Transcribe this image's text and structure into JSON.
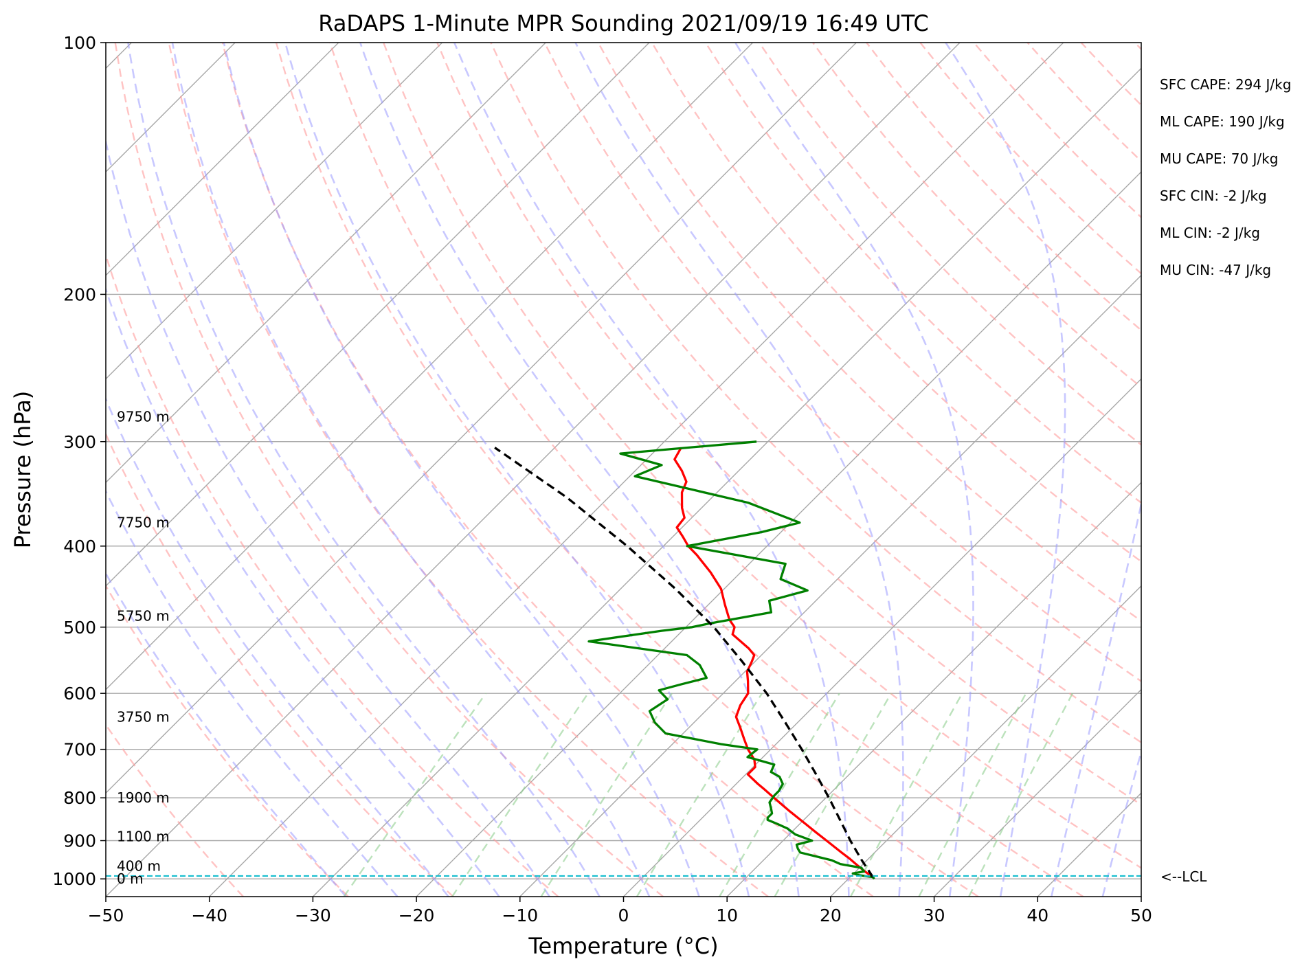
{
  "chart_data": {
    "type": "line",
    "title": "RaDAPS 1-Minute MPR Sounding 2021/09/19 16:49 UTC",
    "xlabel": "Temperature (°C)",
    "ylabel": "Pressure (hPa)",
    "xlim": [
      -50,
      50
    ],
    "ylim": [
      1050,
      100
    ],
    "yscale": "log",
    "skew_degrees": 45,
    "grid": true,
    "x_ticks": [
      -50,
      -40,
      -30,
      -20,
      -10,
      0,
      10,
      20,
      30,
      40,
      50
    ],
    "x_tick_labels": [
      "−50",
      "−40",
      "−30",
      "−20",
      "−10",
      "0",
      "10",
      "20",
      "30",
      "40",
      "50"
    ],
    "y_ticks": [
      100,
      200,
      300,
      400,
      500,
      600,
      700,
      800,
      900,
      1000
    ],
    "y_tick_labels": [
      "100",
      "200",
      "300",
      "400",
      "500",
      "600",
      "700",
      "800",
      "900",
      "1000"
    ],
    "height_labels": [
      {
        "p": 1000,
        "text": "0 m"
      },
      {
        "p": 965,
        "text": "400 m"
      },
      {
        "p": 890,
        "text": "1100 m"
      },
      {
        "p": 800,
        "text": "1900 m"
      },
      {
        "p": 640,
        "text": "3750 m"
      },
      {
        "p": 485,
        "text": "5750 m"
      },
      {
        "p": 375,
        "text": "7750 m"
      },
      {
        "p": 280,
        "text": "9750 m"
      }
    ],
    "stats": [
      "SFC CAPE: 294 J/kg",
      "ML CAPE: 190 J/kg",
      "MU CAPE: 70 J/kg",
      "SFC CIN: -2 J/kg",
      "ML CIN: -2 J/kg",
      "MU CIN: -47 J/kg"
    ],
    "lcl": {
      "p": 992,
      "label": "<--LCL"
    },
    "series": [
      {
        "color": "#ff0000",
        "points": [
          [
            1000,
            22.5
          ],
          [
            995,
            22.2
          ],
          [
            980,
            20.9
          ],
          [
            960,
            19.3
          ],
          [
            945,
            18.1
          ],
          [
            930,
            16.8
          ],
          [
            900,
            14.2
          ],
          [
            880,
            12.4
          ],
          [
            860,
            10.6
          ],
          [
            830,
            7.8
          ],
          [
            800,
            5.0
          ],
          [
            780,
            3.1
          ],
          [
            770,
            2.1
          ],
          [
            750,
            0.2
          ],
          [
            735,
            0.2
          ],
          [
            720,
            -0.6
          ],
          [
            700,
            -2.2
          ],
          [
            680,
            -3.6
          ],
          [
            660,
            -5.0
          ],
          [
            640,
            -6.5
          ],
          [
            620,
            -7.2
          ],
          [
            600,
            -7.6
          ],
          [
            580,
            -8.8
          ],
          [
            565,
            -9.8
          ],
          [
            550,
            -10.3
          ],
          [
            540,
            -10.7
          ],
          [
            530,
            -11.9
          ],
          [
            510,
            -14.8
          ],
          [
            500,
            -15.3
          ],
          [
            490,
            -16.5
          ],
          [
            470,
            -18.4
          ],
          [
            450,
            -20.3
          ],
          [
            430,
            -22.9
          ],
          [
            410,
            -25.9
          ],
          [
            400,
            -27.6
          ],
          [
            390,
            -29.0
          ],
          [
            380,
            -30.5
          ],
          [
            370,
            -30.7
          ],
          [
            360,
            -31.9
          ],
          [
            345,
            -33.4
          ],
          [
            335,
            -34.0
          ],
          [
            325,
            -35.5
          ],
          [
            315,
            -37.3
          ],
          [
            305,
            -37.8
          ]
        ]
      },
      {
        "color": "#008000",
        "points": [
          [
            1000,
            22.5
          ],
          [
            995,
            22.2
          ],
          [
            990,
            20.7
          ],
          [
            985,
            19.9
          ],
          [
            980,
            20.8
          ],
          [
            970,
            20.2
          ],
          [
            960,
            17.8
          ],
          [
            950,
            16.6
          ],
          [
            930,
            12.8
          ],
          [
            920,
            12.2
          ],
          [
            910,
            11.7
          ],
          [
            900,
            12.8
          ],
          [
            885,
            10.6
          ],
          [
            870,
            9.2
          ],
          [
            860,
            7.9
          ],
          [
            850,
            6.5
          ],
          [
            845,
            6.3
          ],
          [
            835,
            6.3
          ],
          [
            825,
            5.8
          ],
          [
            810,
            5.0
          ],
          [
            795,
            4.8
          ],
          [
            785,
            4.8
          ],
          [
            770,
            4.5
          ],
          [
            755,
            3.5
          ],
          [
            745,
            2.2
          ],
          [
            730,
            1.8
          ],
          [
            715,
            -1.5
          ],
          [
            700,
            -1.3
          ],
          [
            690,
            -5.3
          ],
          [
            670,
            -11.7
          ],
          [
            650,
            -13.8
          ],
          [
            630,
            -15.4
          ],
          [
            610,
            -14.8
          ],
          [
            595,
            -16.5
          ],
          [
            585,
            -14.9
          ],
          [
            575,
            -13.1
          ],
          [
            555,
            -15.0
          ],
          [
            540,
            -17.2
          ],
          [
            520,
            -28.0
          ],
          [
            505,
            -22.0
          ],
          [
            500,
            -19.4
          ],
          [
            495,
            -18.1
          ],
          [
            480,
            -13.2
          ],
          [
            465,
            -14.5
          ],
          [
            452,
            -11.8
          ],
          [
            438,
            -15.5
          ],
          [
            420,
            -16.5
          ],
          [
            400,
            -27.7
          ],
          [
            385,
            -21.9
          ],
          [
            375,
            -19.1
          ],
          [
            355,
            -26.0
          ],
          [
            330,
            -39.5
          ],
          [
            320,
            -38.0
          ],
          [
            310,
            -43.1
          ],
          [
            300,
            -31.1
          ]
        ]
      },
      {
        "color": "#000000",
        "dashed": true,
        "points": [
          [
            995,
            22.2
          ],
          [
            950,
            19.5
          ],
          [
            900,
            16.5
          ],
          [
            850,
            13.5
          ],
          [
            800,
            10.3
          ],
          [
            750,
            6.8
          ],
          [
            700,
            3.0
          ],
          [
            650,
            -1.2
          ],
          [
            600,
            -5.8
          ],
          [
            550,
            -11.2
          ],
          [
            500,
            -17.3
          ],
          [
            450,
            -24.7
          ],
          [
            400,
            -33.5
          ],
          [
            350,
            -44.0
          ],
          [
            305,
            -55.8
          ]
        ]
      }
    ]
  }
}
